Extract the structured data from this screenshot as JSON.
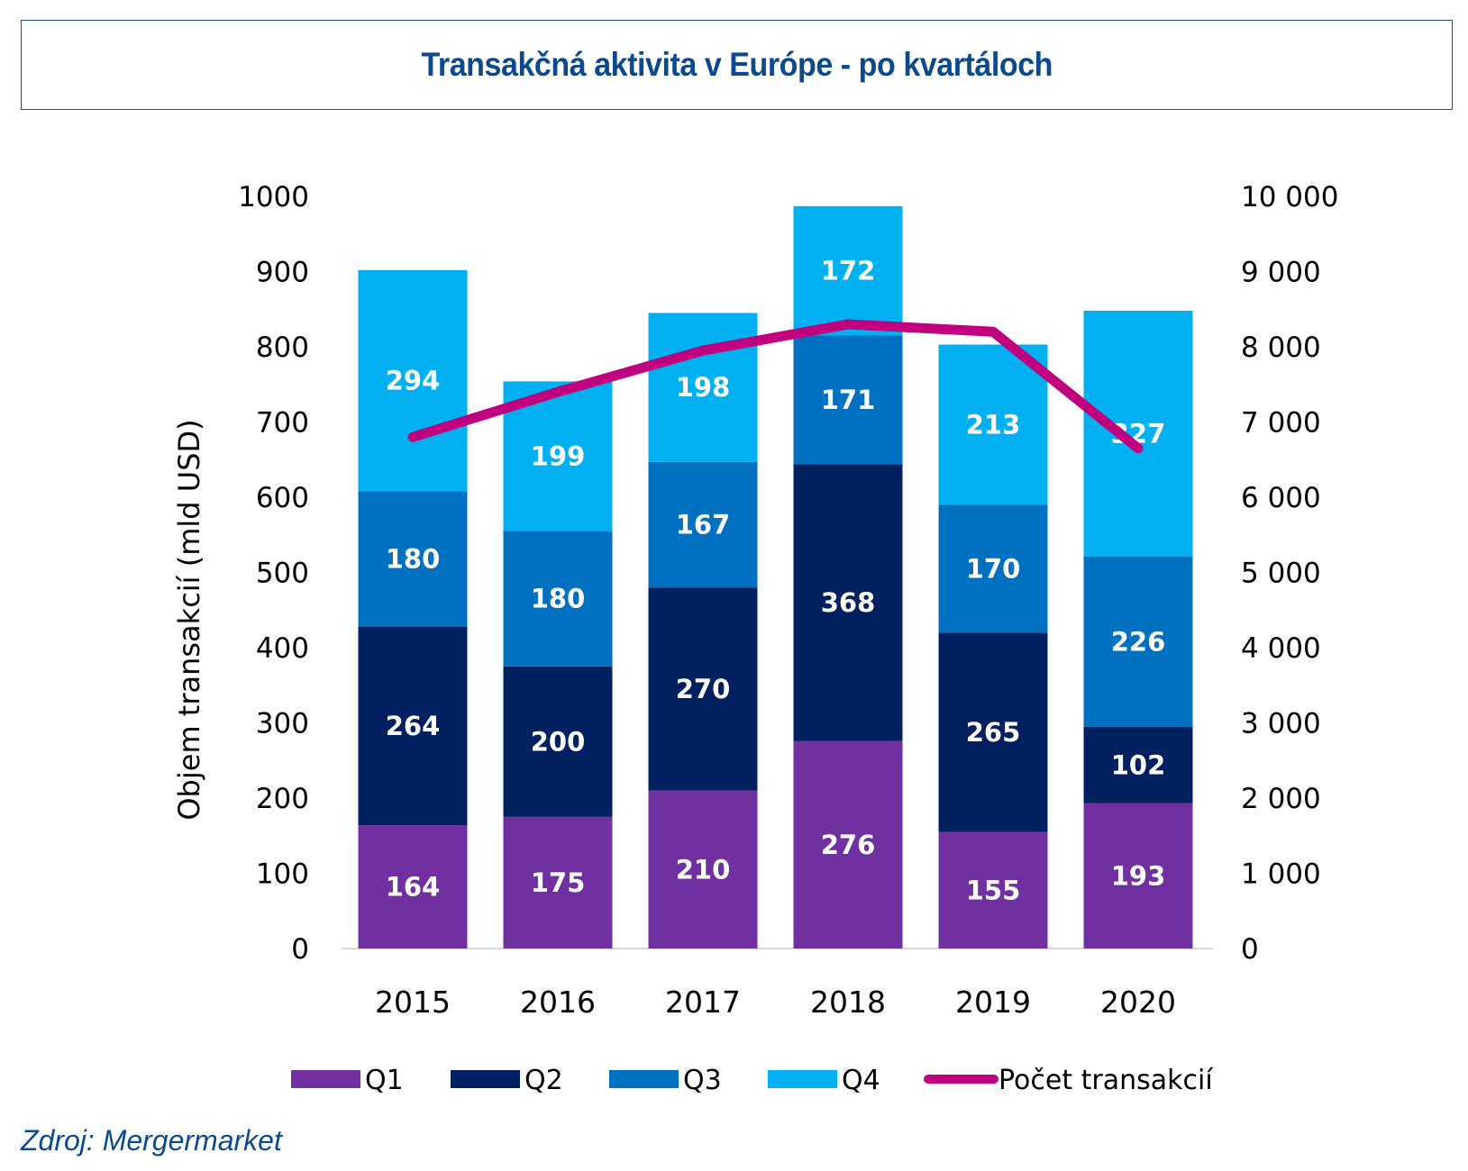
{
  "title": "Transakčná aktivita v Európe - po kvartáloch",
  "source": "Zdroj: Mergermarket",
  "colors": {
    "Q1": "#7030a0",
    "Q2": "#002060",
    "Q3": "#0070c0",
    "Q4": "#00b0f0",
    "line": "#c0007f",
    "title": "#0b4a8f",
    "axis": "#d9d9d9"
  },
  "chart_data": {
    "type": "bar",
    "stacked": true,
    "title": "Transakčná aktivita v Európe - po kvartáloch",
    "xlabel": "",
    "ylabel": "Objem transakcií (mld USD)",
    "y2label": "",
    "categories": [
      "2015",
      "2016",
      "2017",
      "2018",
      "2019",
      "2020"
    ],
    "series": [
      {
        "name": "Q1",
        "type": "bar",
        "axis": "left",
        "values": [
          164,
          175,
          210,
          276,
          155,
          193
        ]
      },
      {
        "name": "Q2",
        "type": "bar",
        "axis": "left",
        "values": [
          264,
          200,
          270,
          368,
          265,
          102
        ]
      },
      {
        "name": "Q3",
        "type": "bar",
        "axis": "left",
        "values": [
          180,
          180,
          167,
          171,
          170,
          226
        ]
      },
      {
        "name": "Q4",
        "type": "bar",
        "axis": "left",
        "values": [
          294,
          199,
          198,
          172,
          213,
          327
        ]
      },
      {
        "name": "Počet transakcií",
        "type": "line",
        "axis": "right",
        "values": [
          6800,
          7400,
          7950,
          8300,
          8200,
          6650
        ]
      }
    ],
    "ylim": [
      0,
      1000
    ],
    "y2lim": [
      0,
      10000
    ],
    "yticks": [
      "0",
      "100",
      "200",
      "300",
      "400",
      "500",
      "600",
      "700",
      "800",
      "900",
      "1000"
    ],
    "y2ticks": [
      "0",
      "1 000",
      "2 000",
      "3 000",
      "4 000",
      "5 000",
      "6 000",
      "7 000",
      "8 000",
      "9 000",
      "10 000"
    ],
    "grid": false,
    "legend": "bottom",
    "data_labels": true
  }
}
